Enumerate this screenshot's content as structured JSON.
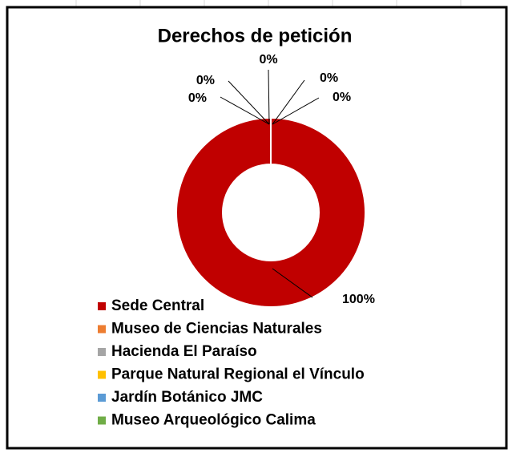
{
  "chart_data": {
    "type": "donut",
    "title": "Derechos de petición",
    "categories": [
      "Sede Central",
      "Museo de Ciencias Naturales",
      "Hacienda El Paraíso",
      "Parque Natural Regional el Vínculo",
      "Jardín Botánico JMC",
      "Museo Arqueológico Calima"
    ],
    "values": [
      100,
      0,
      0,
      0,
      0,
      0
    ],
    "value_labels": [
      "100%",
      "0%",
      "0%",
      "0%",
      "0%",
      "0%"
    ],
    "colors": [
      "#c00000",
      "#ed7d31",
      "#a5a5a5",
      "#ffc000",
      "#5b9bd5",
      "#70ad47"
    ],
    "legend": "bottom"
  }
}
